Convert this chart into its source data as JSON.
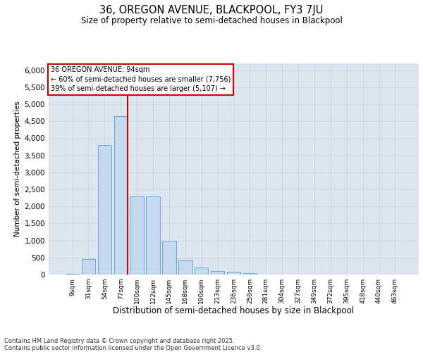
{
  "title1": "36, OREGON AVENUE, BLACKPOOL, FY3 7JU",
  "title2": "Size of property relative to semi-detached houses in Blackpool",
  "xlabel": "Distribution of semi-detached houses by size in Blackpool",
  "ylabel": "Number of semi-detached properties",
  "categories": [
    "9sqm",
    "31sqm",
    "54sqm",
    "77sqm",
    "100sqm",
    "122sqm",
    "145sqm",
    "168sqm",
    "190sqm",
    "213sqm",
    "236sqm",
    "259sqm",
    "281sqm",
    "304sqm",
    "327sqm",
    "349sqm",
    "372sqm",
    "395sqm",
    "418sqm",
    "440sqm",
    "463sqm"
  ],
  "bar_values": [
    30,
    460,
    3800,
    4650,
    2300,
    2300,
    1000,
    430,
    210,
    100,
    80,
    50,
    0,
    0,
    0,
    0,
    0,
    0,
    0,
    0,
    0
  ],
  "bar_color": "#c5d8ee",
  "bar_edge_color": "#6aaad4",
  "vline_color": "#cc0000",
  "annotation_title": "36 OREGON AVENUE: 94sqm",
  "annotation_line1": "← 60% of semi-detached houses are smaller (7,756)",
  "annotation_line2": "39% of semi-detached houses are larger (5,107) →",
  "ylim": [
    0,
    6200
  ],
  "yticks": [
    0,
    500,
    1000,
    1500,
    2000,
    2500,
    3000,
    3500,
    4000,
    4500,
    5000,
    5500,
    6000
  ],
  "grid_color": "#c8d4e4",
  "bg_color": "#dce6f0",
  "footnote1": "Contains HM Land Registry data © Crown copyright and database right 2025.",
  "footnote2": "Contains public sector information licensed under the Open Government Licence v3.0."
}
